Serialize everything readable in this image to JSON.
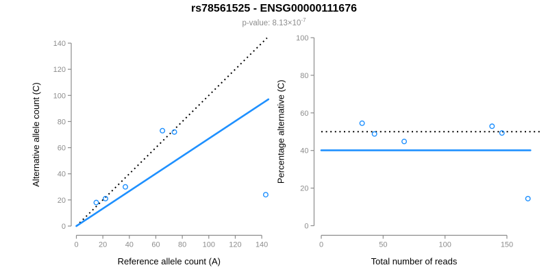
{
  "header": {
    "title": "rs78561525 - ENSG00000111676",
    "pvalue": {
      "label": "p-value: ",
      "mantissa": "8.13×10",
      "exponent": "-7"
    }
  },
  "colors": {
    "accent_blue": "#1e90ff",
    "dotted_black": "#000000",
    "axis_gray": "#8c8c8c",
    "tick_label_gray": "#8c8c8c",
    "title_black": "#000000"
  },
  "chart_data": [
    {
      "type": "scatter",
      "panel": "left",
      "xlabel": "Reference allele count (A)",
      "ylabel": "Alternative allele count (C)",
      "xticks": [
        0,
        20,
        40,
        60,
        80,
        100,
        120,
        140
      ],
      "yticks": [
        0,
        20,
        40,
        60,
        80,
        100,
        120,
        140
      ],
      "xlim": [
        0,
        148
      ],
      "ylim": [
        0,
        148
      ],
      "grid": false,
      "points": [
        [
          15,
          18
        ],
        [
          22,
          21
        ],
        [
          37,
          30
        ],
        [
          65,
          73
        ],
        [
          74,
          72
        ],
        [
          143,
          24
        ]
      ],
      "lines": [
        {
          "name": "identity-line",
          "style": "dotted",
          "color": "#000000",
          "x1": 0,
          "y1": 0,
          "x2": 144,
          "y2": 144
        },
        {
          "name": "fit-line",
          "style": "solid",
          "color": "#1e90ff",
          "x1": 0,
          "y1": 0,
          "x2": 145,
          "y2": 97
        }
      ]
    },
    {
      "type": "scatter",
      "panel": "right",
      "xlabel": "Total number of reads",
      "ylabel": "Percentage alternative (C)",
      "xticks": [
        0,
        50,
        100,
        150
      ],
      "yticks": [
        0,
        20,
        40,
        60,
        80,
        100
      ],
      "xlim": [
        0,
        178
      ],
      "ylim": [
        0,
        100
      ],
      "grid": false,
      "points": [
        [
          33,
          54.5
        ],
        [
          43,
          48.8
        ],
        [
          67,
          44.8
        ],
        [
          138,
          52.9
        ],
        [
          146,
          49.3
        ],
        [
          167,
          14.4
        ]
      ],
      "lines": [
        {
          "name": "fifty-percent-line",
          "style": "dotted",
          "color": "#000000",
          "x1": 0,
          "y1": 50,
          "x2": 178,
          "y2": 50
        },
        {
          "name": "mean-percentage-line",
          "style": "solid",
          "color": "#1e90ff",
          "x1": 0,
          "y1": 40.1,
          "x2": 169,
          "y2": 40.1
        }
      ]
    }
  ]
}
